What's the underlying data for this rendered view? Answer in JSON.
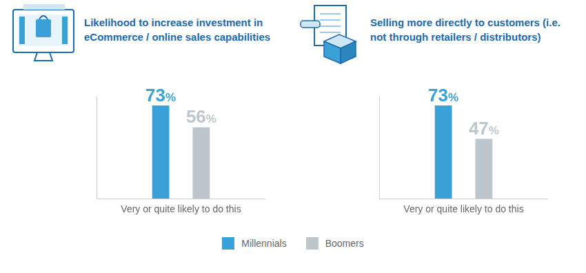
{
  "chart_data": [
    {
      "type": "bar",
      "title": [
        "Likelihood to increase investment in",
        "eCommerce / online sales capabilities"
      ],
      "categories": [
        "Very or quite likely to do this"
      ],
      "series": [
        {
          "name": "Millennials",
          "color": "#3aa0d8",
          "values": [
            73
          ],
          "value_labels": [
            "73%"
          ]
        },
        {
          "name": "Boomers",
          "color": "#bdc6cc",
          "values": [
            56
          ],
          "value_labels": [
            "56%"
          ]
        }
      ],
      "ylim": [
        0,
        80
      ],
      "grid": false,
      "data_labels": true,
      "tick_labels": "x",
      "legend": "bottom"
    },
    {
      "type": "bar",
      "title": [
        "Selling more directly to customers (i.e.",
        "not through retailers / distributors)"
      ],
      "categories": [
        "Very or quite likely to do this"
      ],
      "series": [
        {
          "name": "Millennials",
          "color": "#3aa0d8",
          "values": [
            73
          ],
          "value_labels": [
            "73%"
          ]
        },
        {
          "name": "Boomers",
          "color": "#bdc6cc",
          "values": [
            47
          ],
          "value_labels": [
            "47%"
          ]
        }
      ],
      "ylim": [
        0,
        80
      ],
      "grid": false,
      "data_labels": true,
      "tick_labels": "x",
      "legend": "bottom"
    }
  ]
}
